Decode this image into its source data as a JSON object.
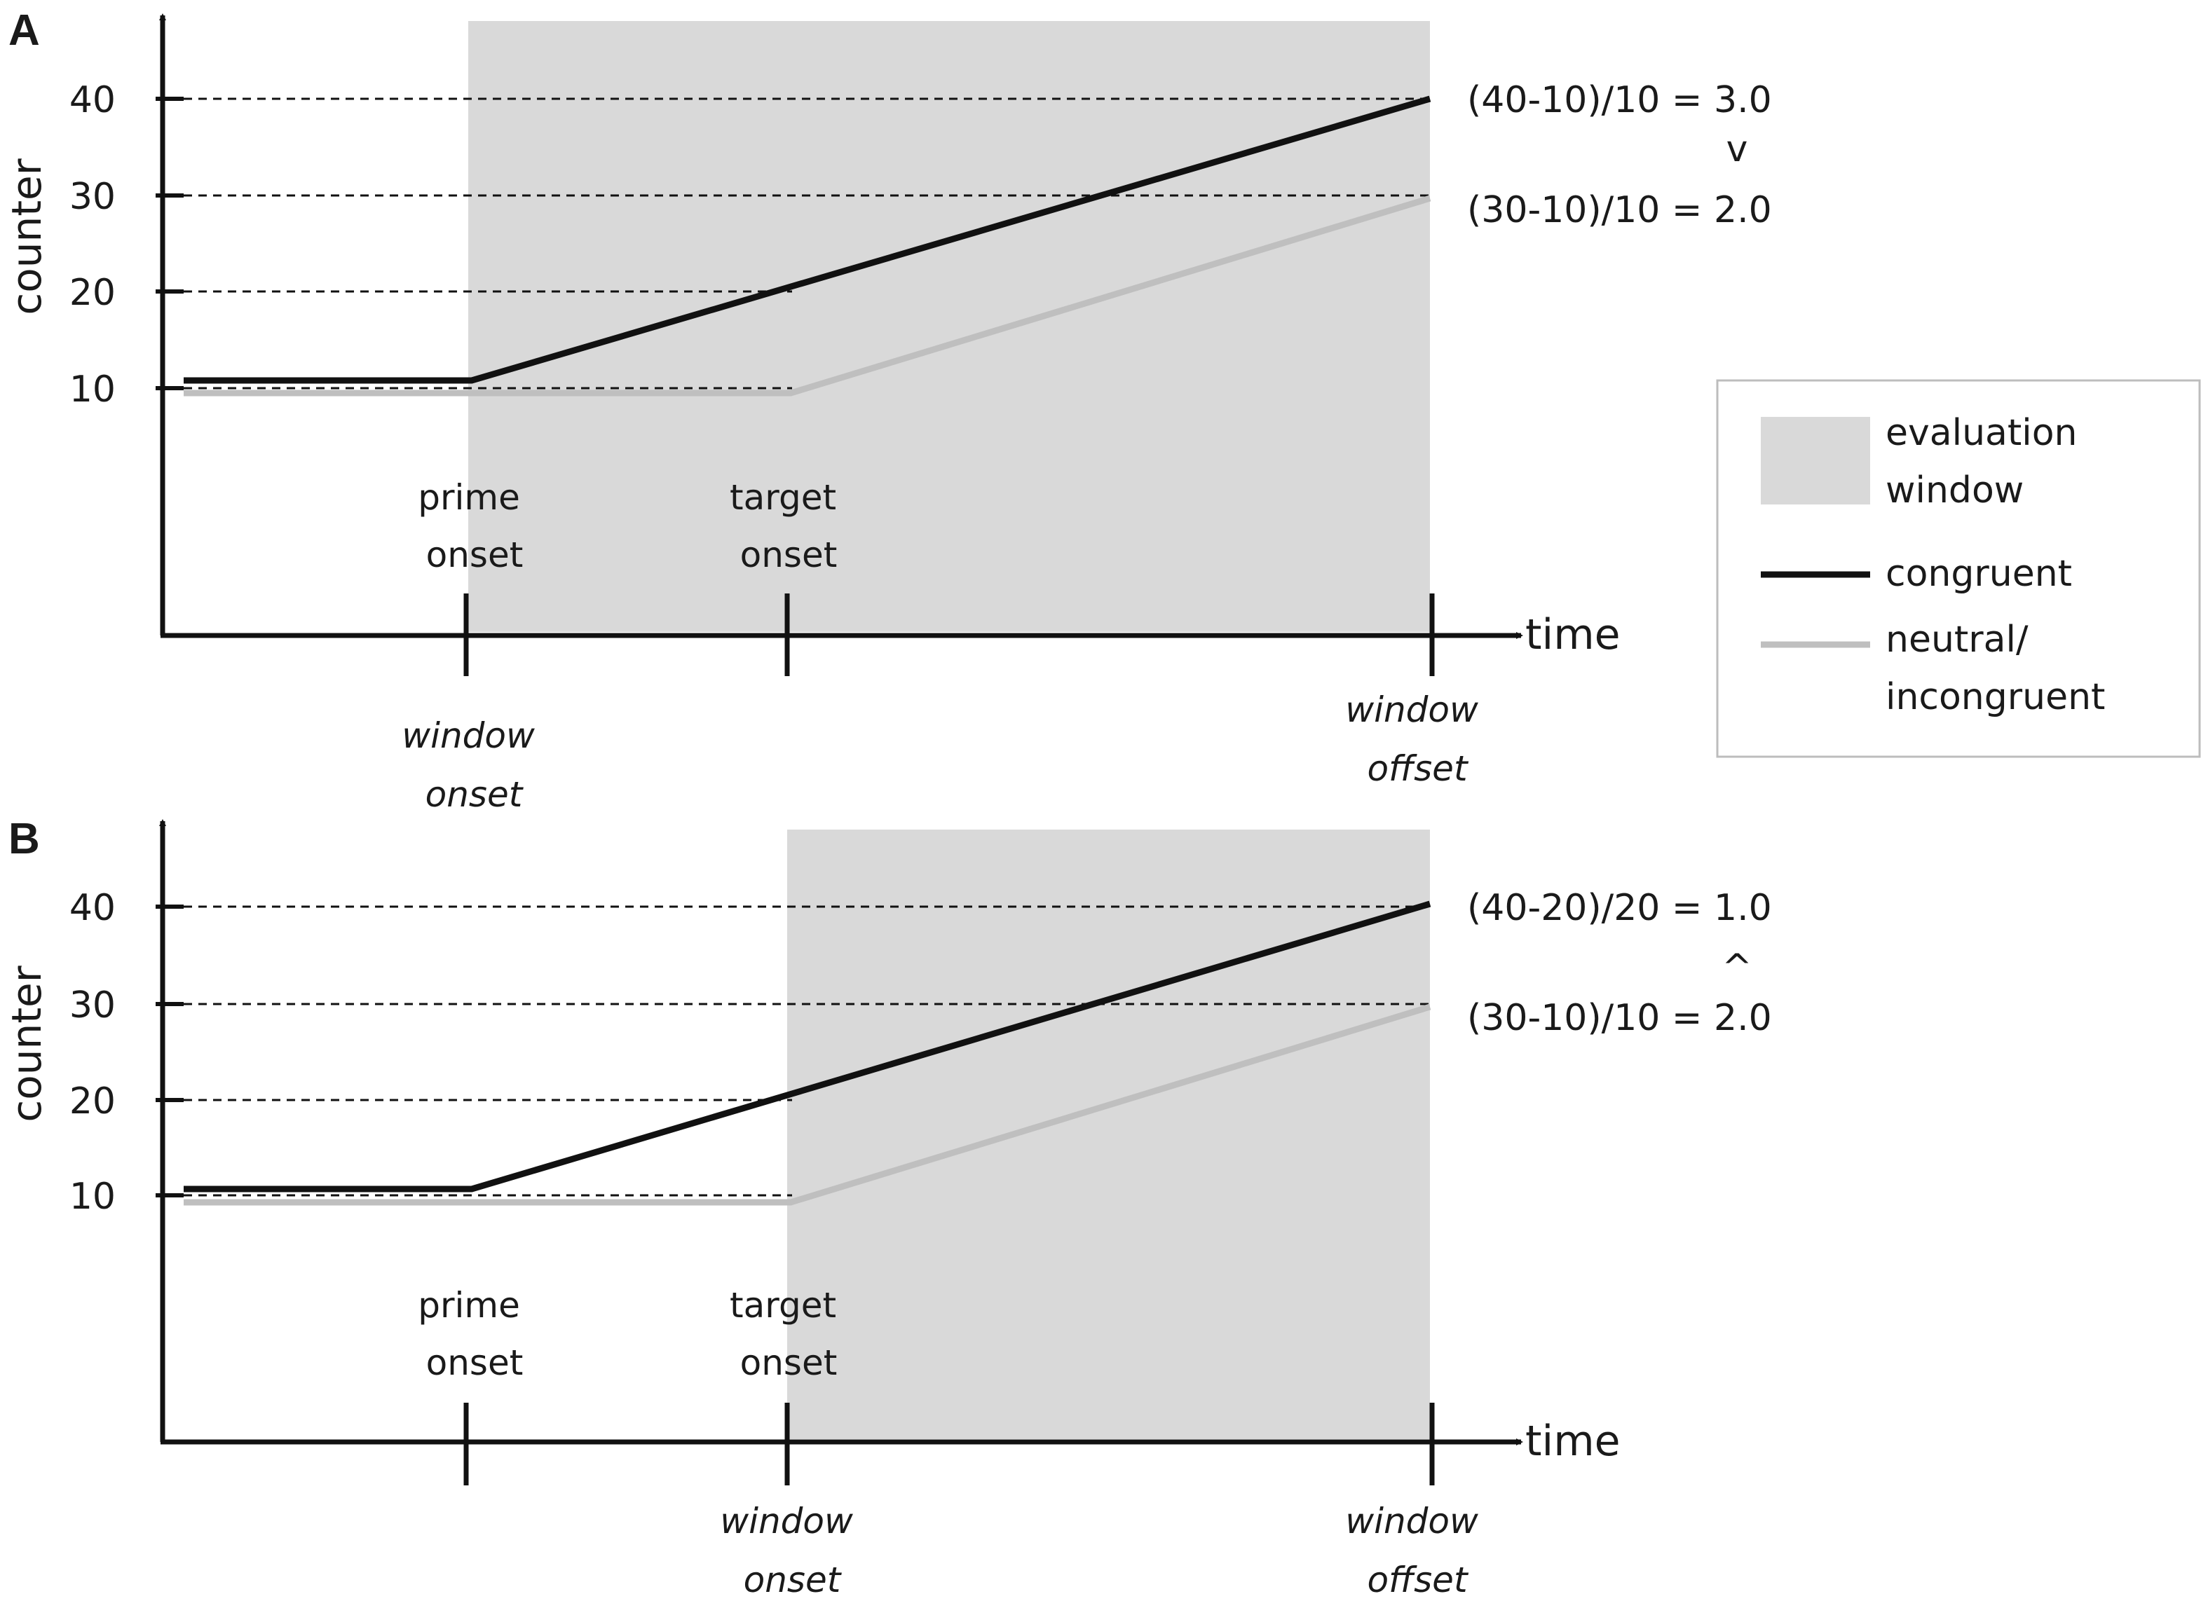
{
  "panels": [
    {
      "letter": "A",
      "ylabel": "counter",
      "xlabel": "time",
      "y_ticks": [
        "10",
        "20",
        "30",
        "40"
      ],
      "events": [
        {
          "line1": "prime",
          "line2": "onset"
        },
        {
          "line1": "target",
          "line2": "onset"
        }
      ],
      "window_onset": {
        "line1": "window",
        "line2": "onset"
      },
      "window_offset": {
        "line1": "window",
        "line2": "offset"
      },
      "formula_congruent": "(40-10)/10 = 3.0",
      "comparison": "v",
      "formula_neutral": "(30-10)/10 = 2.0"
    },
    {
      "letter": "B",
      "ylabel": "counter",
      "xlabel": "time",
      "y_ticks": [
        "10",
        "20",
        "30",
        "40"
      ],
      "events": [
        {
          "line1": "prime",
          "line2": "onset"
        },
        {
          "line1": "target",
          "line2": "onset"
        }
      ],
      "window_onset": {
        "line1": "window",
        "line2": "onset"
      },
      "window_offset": {
        "line1": "window",
        "line2": "offset"
      },
      "formula_congruent": "(40-20)/20 = 1.0",
      "comparison": "^",
      "formula_neutral": "(30-10)/10 = 2.0"
    }
  ],
  "legend": {
    "window_line1": "evaluation",
    "window_line2": "window",
    "congruent": "congruent",
    "neutral_line1": "neutral/",
    "neutral_line2": "incongruent"
  },
  "colors": {
    "window": "#d9d9d9",
    "congruent": "#111111",
    "neutral": "#bfbfbf",
    "axis": "#111111"
  }
}
